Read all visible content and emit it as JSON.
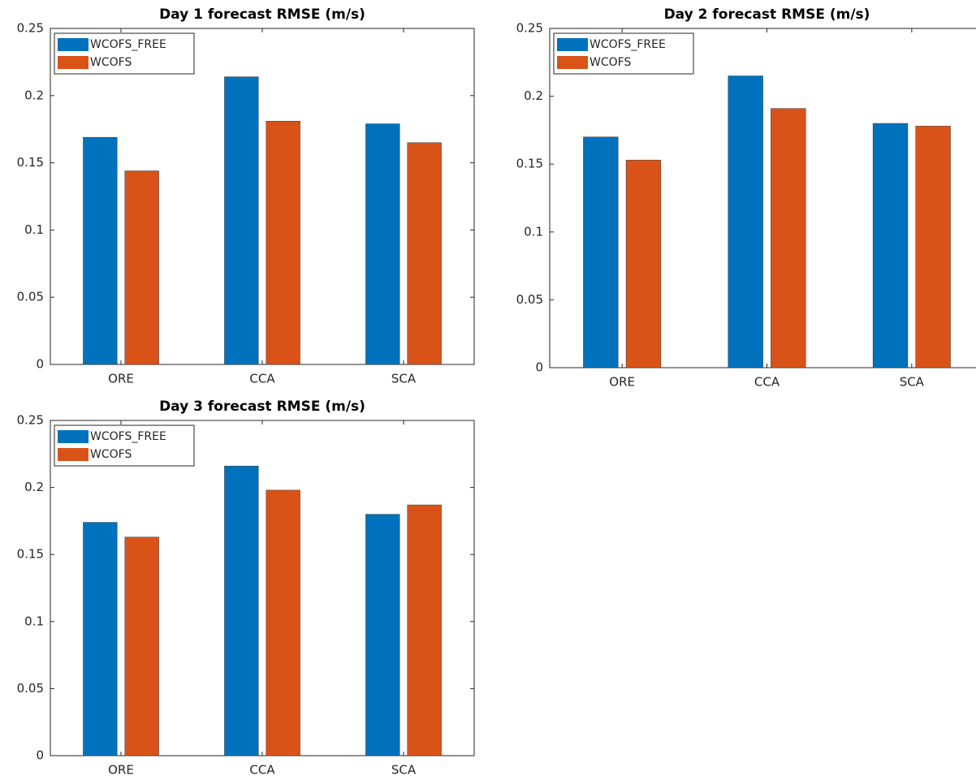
{
  "chart_data": [
    {
      "type": "bar",
      "title": "Day 1 forecast RMSE (m/s)",
      "categories": [
        "ORE",
        "CCA",
        "SCA"
      ],
      "series": [
        {
          "name": "WCOFS_FREE",
          "color": "#0072bd",
          "values": [
            0.169,
            0.214,
            0.179
          ]
        },
        {
          "name": "WCOFS",
          "color": "#d95319",
          "values": [
            0.144,
            0.181,
            0.165
          ]
        }
      ],
      "ylim": [
        0,
        0.25
      ],
      "yticks": [
        0,
        0.05,
        0.1,
        0.15,
        0.2,
        0.25
      ],
      "legend": "upper left"
    },
    {
      "type": "bar",
      "title": "Day 2 forecast RMSE (m/s)",
      "categories": [
        "ORE",
        "CCA",
        "SCA"
      ],
      "series": [
        {
          "name": "WCOFS_FREE",
          "color": "#0072bd",
          "values": [
            0.17,
            0.215,
            0.18
          ]
        },
        {
          "name": "WCOFS",
          "color": "#d95319",
          "values": [
            0.153,
            0.191,
            0.178
          ]
        }
      ],
      "ylim": [
        0,
        0.25
      ],
      "yticks": [
        0,
        0.05,
        0.1,
        0.15,
        0.2,
        0.25
      ],
      "legend": "upper left"
    },
    {
      "type": "bar",
      "title": "Day 3 forecast RMSE (m/s)",
      "categories": [
        "ORE",
        "CCA",
        "SCA"
      ],
      "series": [
        {
          "name": "WCOFS_FREE",
          "color": "#0072bd",
          "values": [
            0.174,
            0.216,
            0.18
          ]
        },
        {
          "name": "WCOFS",
          "color": "#d95319",
          "values": [
            0.163,
            0.198,
            0.187
          ]
        }
      ],
      "ylim": [
        0,
        0.25
      ],
      "yticks": [
        0,
        0.05,
        0.1,
        0.15,
        0.2,
        0.25
      ],
      "legend": "upper left"
    }
  ]
}
